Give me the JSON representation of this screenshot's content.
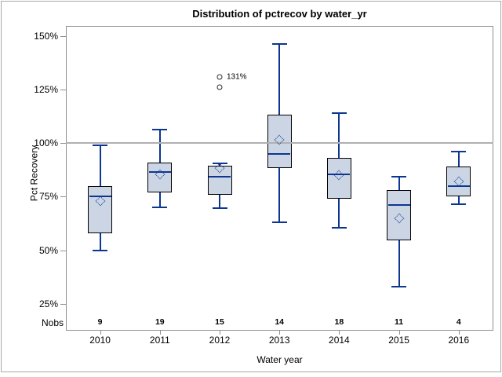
{
  "page": {
    "background": "#ffffff",
    "border_color": "#a9a9a9"
  },
  "chart_data": {
    "type": "boxplot",
    "title": "Distribution of pctrecov by water_yr",
    "xlabel": "Water year",
    "ylabel": "Pct Recovery",
    "nobs_label": "Nobs",
    "yticks": [
      150,
      125,
      100,
      75,
      50,
      25
    ],
    "ytick_suffix": "%",
    "ylim": [
      13,
      155
    ],
    "reference_line": 100,
    "grid": "off",
    "legend_position": "none",
    "categories": [
      "2010",
      "2011",
      "2012",
      "2013",
      "2014",
      "2015",
      "2016"
    ],
    "nobs": [
      9,
      19,
      15,
      14,
      18,
      11,
      4
    ],
    "boxes": [
      {
        "category": "2010",
        "whisker_low": 50,
        "q1": 58,
        "median": 75,
        "mean": 73,
        "q3": 80,
        "whisker_high": 99,
        "outliers": []
      },
      {
        "category": "2011",
        "whisker_low": 70,
        "q1": 77,
        "median": 86.5,
        "mean": 85.5,
        "q3": 91,
        "whisker_high": 106.5,
        "outliers": []
      },
      {
        "category": "2012",
        "whisker_low": 69.5,
        "q1": 76,
        "median": 84.5,
        "mean": 88.5,
        "q3": 89.5,
        "whisker_high": 90.5,
        "outliers": [
          {
            "value": 131,
            "label": "131%"
          },
          {
            "value": 126,
            "label": ""
          }
        ]
      },
      {
        "category": "2013",
        "whisker_low": 63,
        "q1": 88.5,
        "median": 95,
        "mean": 101.5,
        "q3": 113.5,
        "whisker_high": 146.5,
        "outliers": []
      },
      {
        "category": "2014",
        "whisker_low": 60.5,
        "q1": 74,
        "median": 85.5,
        "mean": 85,
        "q3": 93,
        "whisker_high": 114,
        "outliers": []
      },
      {
        "category": "2015",
        "whisker_low": 33,
        "q1": 54.5,
        "median": 71,
        "mean": 65,
        "q3": 78,
        "whisker_high": 84.5,
        "outliers": []
      },
      {
        "category": "2016",
        "whisker_low": 71.5,
        "q1": 75,
        "median": 80,
        "mean": 82,
        "q3": 89,
        "whisker_high": 96,
        "outliers": []
      }
    ],
    "colors": {
      "box_fill": "#ccd5e4",
      "box_stroke": "#000000",
      "line": "#0d3692",
      "reference_line": "#b0b0b0",
      "frame": "#8f8f8f",
      "outlier_stroke": "#2e2e2e",
      "text": "#000000"
    }
  }
}
